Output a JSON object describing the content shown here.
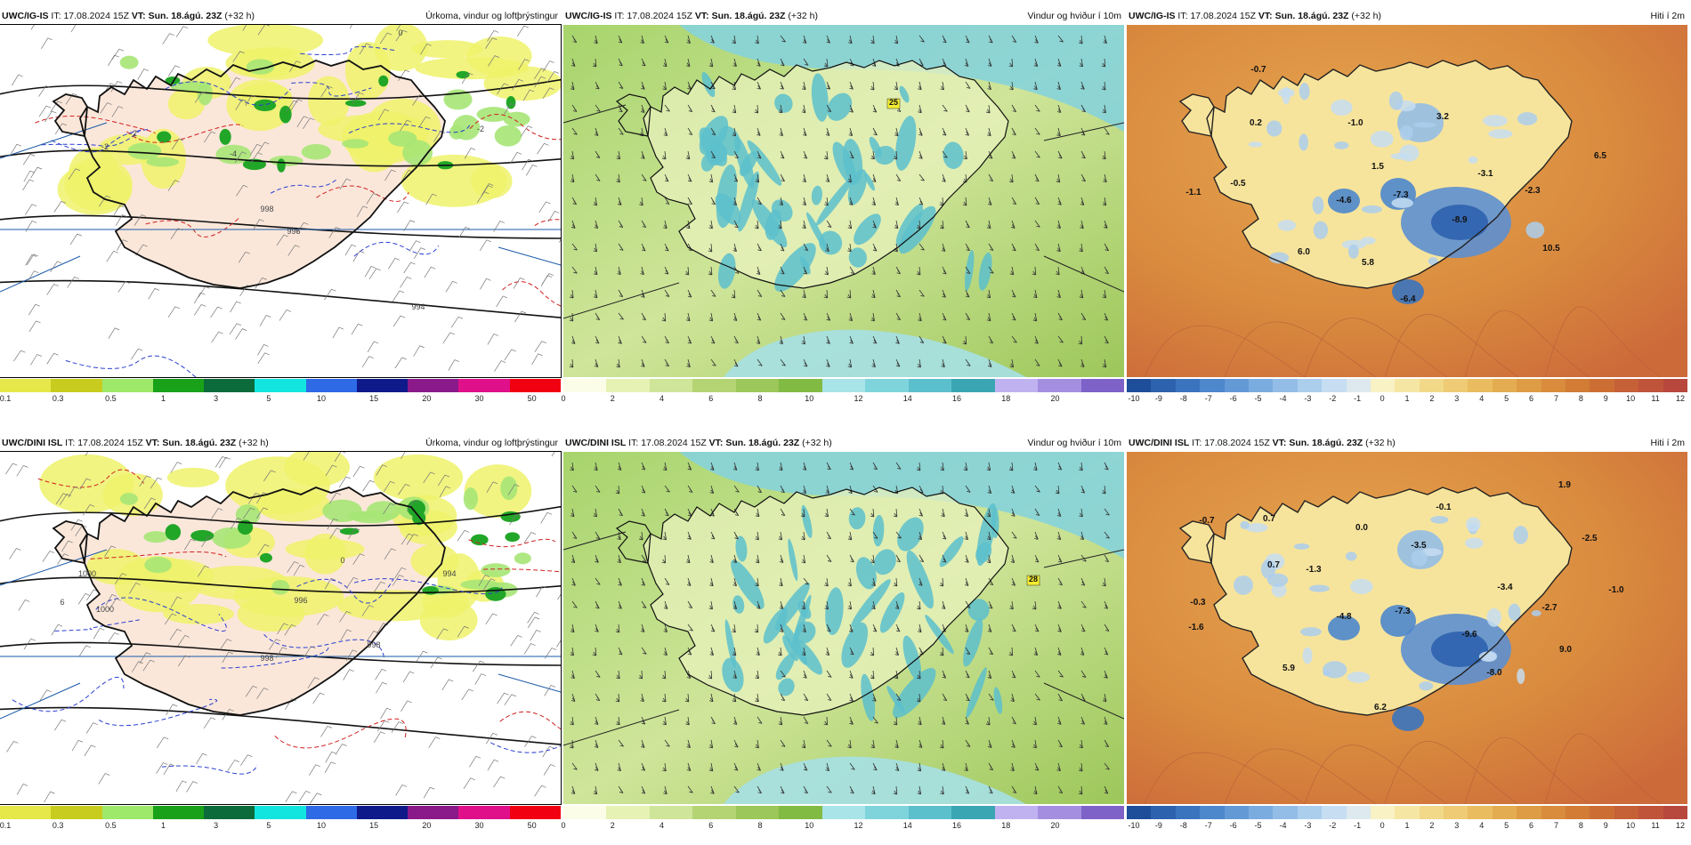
{
  "rows": [
    {
      "model": "UWC/IG-IS",
      "panels": [
        {
          "kind": "precip",
          "title": "Úrkoma, vindur og loftþrýstingur",
          "labels": [
            "998",
            "996",
            "994",
            "-2",
            "-4",
            "-2",
            "0",
            "-2"
          ]
        },
        {
          "kind": "wind",
          "title": "Vindur og hviður í 10m",
          "labels": [
            "25"
          ]
        },
        {
          "kind": "temp",
          "title": "Hiti í 2m",
          "labels": [
            "-0.7",
            "0.2",
            "-1.0",
            "3.2",
            "1.5",
            "-3.1",
            "6.5",
            "-0.5",
            "-1.1",
            "-4.6",
            "-7.3",
            "-2.3",
            "-8.9",
            "6.0",
            "5.8",
            "10.5",
            "-6.4"
          ]
        }
      ]
    },
    {
      "model": "UWC/DINI ISL",
      "panels": [
        {
          "kind": "precip",
          "title": "Úrkoma, vindur og loftþrýstingur",
          "labels": [
            "1000",
            "1000",
            "998",
            "996",
            "994",
            "998",
            "0",
            "6"
          ]
        },
        {
          "kind": "wind",
          "title": "Vindur og hviður í 10m",
          "labels": [
            "28"
          ]
        },
        {
          "kind": "temp",
          "title": "Hiti í 2m",
          "labels": [
            "1.9",
            "-0.7",
            "0.7",
            "0.0",
            "-0.1",
            "-2.5",
            "-3.5",
            "0.7",
            "-1.3",
            "-3.4",
            "-1.0",
            "-0.3",
            "-1.6",
            "-4.8",
            "-7.3",
            "-2.7",
            "-9.6",
            "9.0",
            "5.9",
            "-8.0",
            "6.2"
          ]
        }
      ]
    }
  ],
  "header": {
    "it_label": "IT:",
    "it_value": "17.08.2024 15Z",
    "vt_label": "VT:",
    "vt_value": "Sun. 18.ágú. 23Z",
    "offset": "(+32 h)"
  },
  "colorbars": {
    "precip": {
      "ticks": [
        "0.1",
        "0.3",
        "0.5",
        "1",
        "3",
        "5",
        "10",
        "15",
        "20",
        "30",
        "50"
      ],
      "colors": [
        "#e6e84a",
        "#c8cc1e",
        "#9ee86a",
        "#1aa11a",
        "#0b6b3a",
        "#12e5e0",
        "#2e6ae6",
        "#0e1a8a",
        "#8a1a8a",
        "#e0108a",
        "#f00010"
      ]
    },
    "wind": {
      "ticks": [
        "0",
        "2",
        "4",
        "6",
        "8",
        "10",
        "12",
        "14",
        "16",
        "18",
        "20"
      ],
      "colors": [
        "#fbfde8",
        "#e6f2b4",
        "#cfe59a",
        "#b4d474",
        "#9cc75a",
        "#82bb44",
        "#a8e4e8",
        "#7fd4dc",
        "#5cbfcc",
        "#3aa6b4",
        "#c0b2f0",
        "#a48ee0",
        "#7e62c8"
      ]
    },
    "temp": {
      "ticks": [
        "-10",
        "-9",
        "-8",
        "-7",
        "-6",
        "-5",
        "-4",
        "-3",
        "-2",
        "-1",
        "0",
        "1",
        "2",
        "3",
        "4",
        "5",
        "6",
        "7",
        "8",
        "9",
        "10",
        "11",
        "12"
      ],
      "colors": [
        "#1e4e9a",
        "#2d62ae",
        "#3a74bf",
        "#4d87cc",
        "#639ad6",
        "#7aacdf",
        "#93bde6",
        "#acceed",
        "#c6ddf2",
        "#dde9ee",
        "#f8f2c4",
        "#f6e6a4",
        "#f2d98a",
        "#eecb74",
        "#e9bc60",
        "#e4ac50",
        "#de9c44",
        "#d88c3c",
        "#d27c36",
        "#cc6e34",
        "#c66036",
        "#c0543a",
        "#b8483e"
      ]
    }
  }
}
